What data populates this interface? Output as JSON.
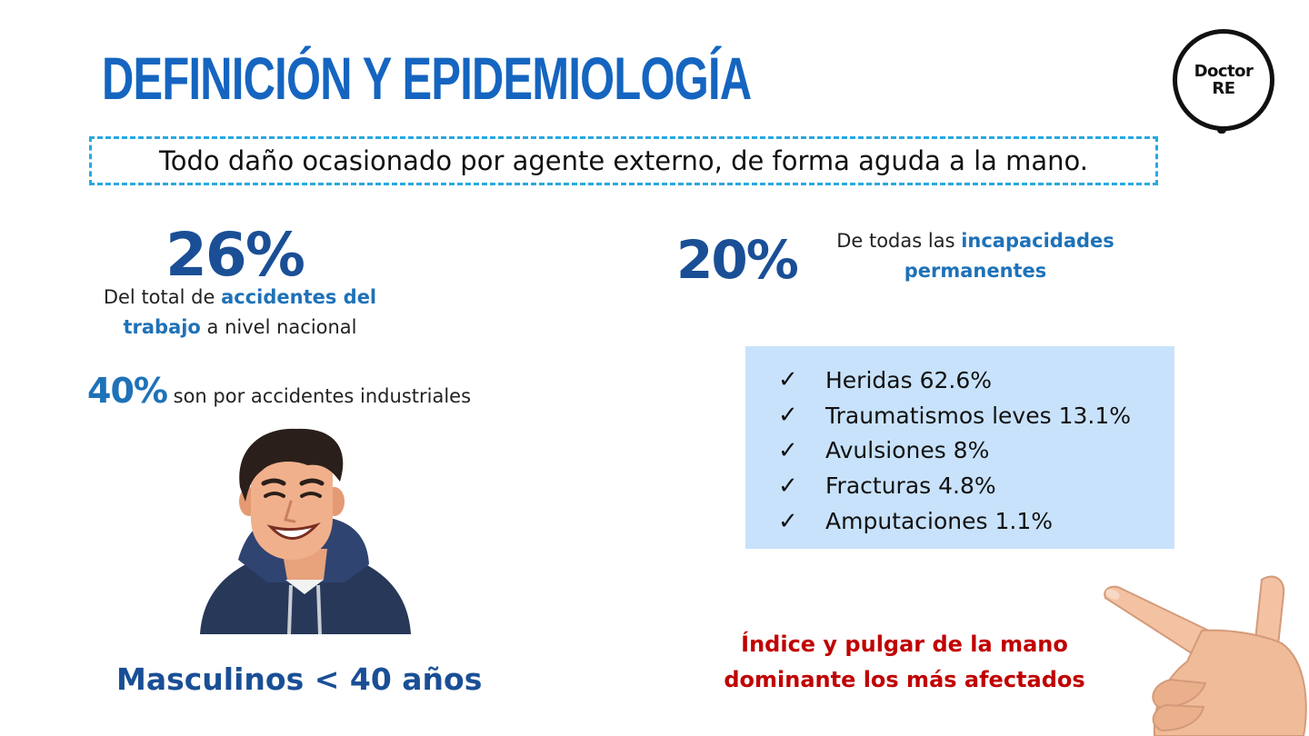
{
  "title": "DEFINICIÓN Y EPIDEMIOLOGÍA",
  "logo": {
    "line1": "Doctor",
    "line2": "RE"
  },
  "definition": "Todo daño ocasionado por agente externo, de forma aguda a la mano.",
  "stat_accidents": {
    "value": "26%",
    "text_pre": "Del total de ",
    "text_highlight_1": "accidentes del",
    "text_highlight_2": "trabajo",
    "text_post": " a nivel nacional"
  },
  "stat_industrial": {
    "value": "40%",
    "text": " son por accidentes industriales"
  },
  "stat_disability": {
    "value": "20%",
    "text_pre": "De todas las ",
    "text_highlight_1": "incapacidades",
    "text_highlight_2": "permanentes"
  },
  "injuries": [
    "Heridas 62.6%",
    "Traumatismos leves 13.1%",
    "Avulsiones 8%",
    "Fracturas 4.8%",
    "Amputaciones 1.1%"
  ],
  "check_glyph": "✓",
  "demographic": "Masculinos < 40 años",
  "fingers_note": {
    "line1": "Índice y pulgar de la mano",
    "line2": "dominante los más afectados"
  },
  "colors": {
    "title": "#1565c0",
    "highlight": "#1e72b8",
    "number": "#1a4f96",
    "warning": "#c00000",
    "box_bg": "#c8e2fb",
    "dashed_border": "#29a9e1"
  }
}
